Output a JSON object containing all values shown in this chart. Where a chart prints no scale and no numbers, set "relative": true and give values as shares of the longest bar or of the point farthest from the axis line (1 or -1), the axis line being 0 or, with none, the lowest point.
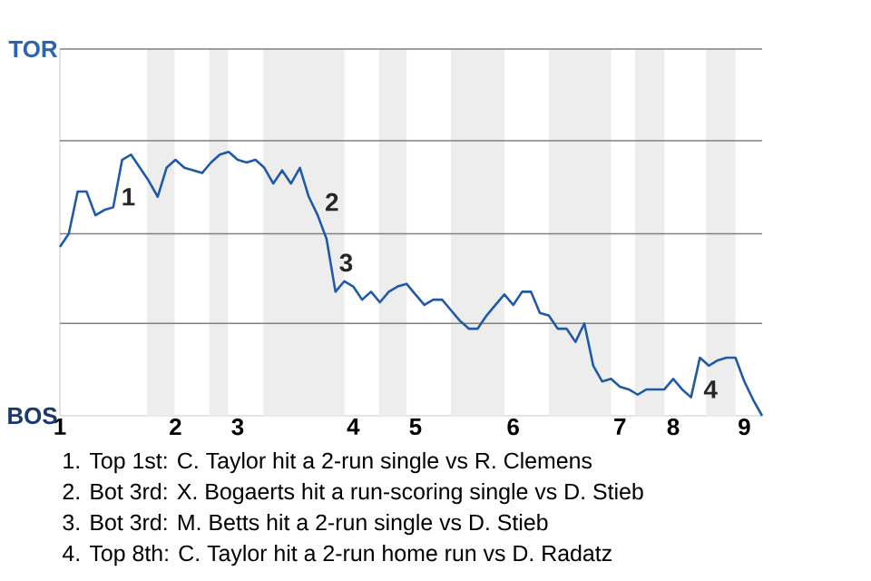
{
  "chart_data": {
    "type": "line",
    "relative": true,
    "categories": [
      "1",
      null,
      null,
      null,
      null,
      null,
      null,
      null,
      null,
      null,
      null,
      null,
      null,
      "2",
      null,
      null,
      null,
      null,
      null,
      null,
      "3",
      null,
      null,
      null,
      null,
      null,
      null,
      null,
      null,
      null,
      null,
      null,
      null,
      "4",
      null,
      null,
      null,
      null,
      null,
      null,
      "5",
      null,
      null,
      null,
      null,
      null,
      null,
      null,
      null,
      null,
      null,
      "6",
      null,
      null,
      null,
      null,
      null,
      null,
      null,
      null,
      null,
      null,
      null,
      "7",
      null,
      null,
      null,
      null,
      null,
      "8",
      null,
      null,
      null,
      null,
      null,
      null,
      null,
      "9",
      null,
      null
    ],
    "series": [
      {
        "color": "#1f5aa8",
        "values": [
          0.64,
          0.69,
          0.85,
          0.85,
          0.76,
          0.78,
          0.79,
          0.97,
          0.99,
          0.94,
          0.89,
          0.83,
          0.94,
          0.97,
          0.94,
          0.93,
          0.92,
          0.96,
          0.99,
          1,
          0.97,
          0.96,
          0.97,
          0.94,
          0.88,
          0.93,
          0.88,
          0.94,
          0.83,
          0.76,
          0.67,
          0.47,
          0.51,
          0.49,
          0.44,
          0.47,
          0.43,
          0.47,
          0.49,
          0.5,
          0.46,
          0.42,
          0.44,
          0.44,
          0.4,
          0.36,
          0.33,
          0.33,
          0.38,
          0.42,
          0.46,
          0.42,
          0.47,
          0.47,
          0.39,
          0.38,
          0.33,
          0.33,
          0.28,
          0.35,
          0.19,
          0.13,
          0.14,
          0.11,
          0.1,
          0.08,
          0.1,
          0.1,
          0.1,
          0.14,
          0.1,
          0.07,
          0.22,
          0.19,
          0.21,
          0.22,
          0.22,
          0.13,
          0.06,
          0
        ]
      }
    ],
    "ref_lines": [
      {
        "axis": "y",
        "value": 0.35,
        "color": "#808080"
      },
      {
        "axis": "y",
        "value": 0.69,
        "color": "#808080"
      }
    ],
    "annotations": [
      "TOR",
      "BOS",
      "1",
      "2",
      "3",
      "4",
      "1. Top 1st: C. Taylor hit a 2-run single vs R. Clemens",
      "2. Bot 3rd: X. Bogaerts hit a run-scoring single vs D. Stieb",
      "3. Bot 3rd: M. Betts hit a 2-run single vs D. Stieb",
      "4. Top 8th: C. Taylor hit a 2-run home run vs D. Radatz"
    ]
  }
}
